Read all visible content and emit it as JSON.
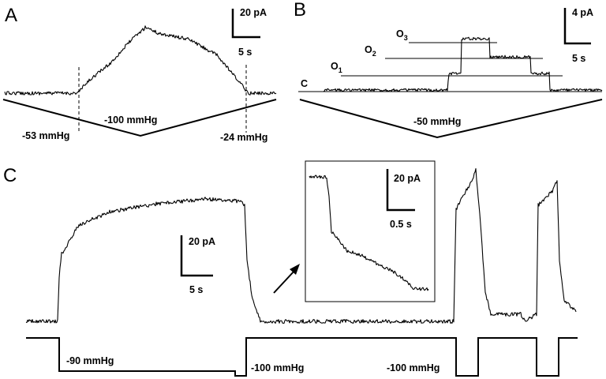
{
  "panels": {
    "A": {
      "letter": "A",
      "scale_y": "20 pA",
      "scale_x": "5 s",
      "pressure_peak": "-100 mmHg",
      "pressure_start": "-53 mmHg",
      "pressure_end": "-24 mmHg"
    },
    "B": {
      "letter": "B",
      "scale_y": "4 pA",
      "scale_x": "5 s",
      "pressure_peak": "-50 mmHg",
      "levels": {
        "closed": "C",
        "o1_main": "O",
        "o1_sub": "1",
        "o2_main": "O",
        "o2_sub": "2",
        "o3_main": "O",
        "o3_sub": "3"
      }
    },
    "C": {
      "letter": "C",
      "scale_y": "20 pA",
      "scale_x": "5 s",
      "pressure_1": "-90 mmHg",
      "pressure_2": "-100 mmHg",
      "pressure_3": "-100 mmHg",
      "inset": {
        "scale_y": "20 pA",
        "scale_x": "0.5 s"
      }
    }
  }
}
